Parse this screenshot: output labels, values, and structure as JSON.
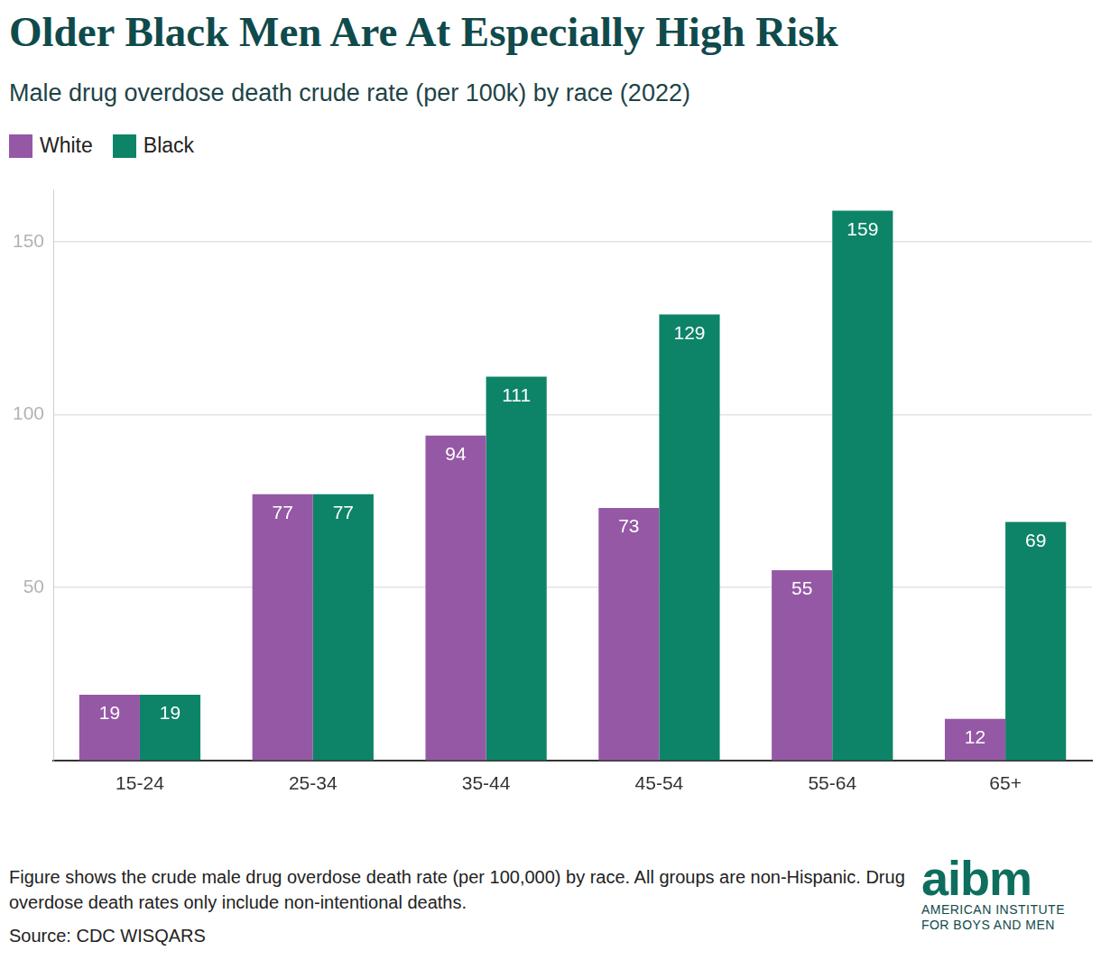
{
  "chart_data": {
    "type": "bar",
    "title": "Older Black Men Are At Especially High Risk",
    "subtitle": "Male drug overdose death crude rate (per 100k) by race (2022)",
    "categories": [
      "15-24",
      "25-34",
      "35-44",
      "45-54",
      "55-64",
      "65+"
    ],
    "series": [
      {
        "name": "White",
        "color": "#9558a5",
        "values": [
          19,
          77,
          94,
          73,
          55,
          12
        ]
      },
      {
        "name": "Black",
        "color": "#0d8467",
        "values": [
          19,
          77,
          111,
          129,
          159,
          69
        ]
      }
    ],
    "ylim": [
      0,
      165
    ],
    "yticks": [
      50,
      100,
      150
    ],
    "grid": true,
    "legend": "top-left",
    "data_labels": true,
    "note": "Figure shows the crude male drug overdose death rate (per 100,000) by race. All groups are non-Hispanic. Drug overdose death rates only include non-intentional deaths.",
    "source": "Source: CDC WISQARS",
    "logo": {
      "text": "aibm",
      "subtext": [
        "AMERICAN INSTITUTE",
        "FOR BOYS AND MEN"
      ]
    }
  }
}
